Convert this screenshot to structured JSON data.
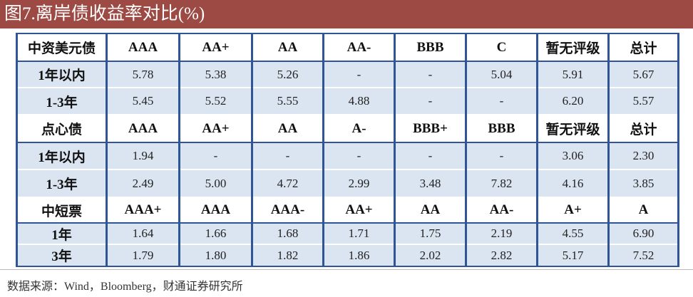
{
  "title": "图7.离岸债收益率对比(%)",
  "table": {
    "sections": [
      {
        "header": [
          "中资美元债",
          "AAA",
          "AA+",
          "AA",
          "AA-",
          "BBB",
          "C",
          "暂无评级",
          "总计"
        ],
        "rows": [
          [
            "1年以内",
            "5.78",
            "5.38",
            "5.26",
            "-",
            "-",
            "5.04",
            "5.91",
            "5.67"
          ],
          [
            "1-3年",
            "5.45",
            "5.52",
            "5.55",
            "4.88",
            "-",
            "-",
            "6.20",
            "5.57"
          ]
        ]
      },
      {
        "header": [
          "点心债",
          "AAA",
          "AA+",
          "AA",
          "A-",
          "BBB+",
          "BBB",
          "暂无评级",
          "总计"
        ],
        "rows": [
          [
            "1年以内",
            "1.94",
            "-",
            "-",
            "-",
            "-",
            "-",
            "3.06",
            "2.30"
          ],
          [
            "1-3年",
            "2.49",
            "5.00",
            "4.72",
            "2.99",
            "3.48",
            "7.82",
            "4.16",
            "3.85"
          ]
        ]
      },
      {
        "header": [
          "中短票",
          "AAA+",
          "AAA",
          "AAA-",
          "AA+",
          "AA",
          "AA-",
          "A+",
          "A"
        ],
        "rows": [
          [
            "1年",
            "1.64",
            "1.66",
            "1.68",
            "1.71",
            "1.75",
            "2.19",
            "4.55",
            "6.90"
          ],
          [
            "3年",
            "1.79",
            "1.80",
            "1.82",
            "1.86",
            "2.02",
            "2.82",
            "5.17",
            "7.52"
          ]
        ]
      }
    ]
  },
  "source": "数据来源：Wind，Bloomberg，财通证券研究所"
}
